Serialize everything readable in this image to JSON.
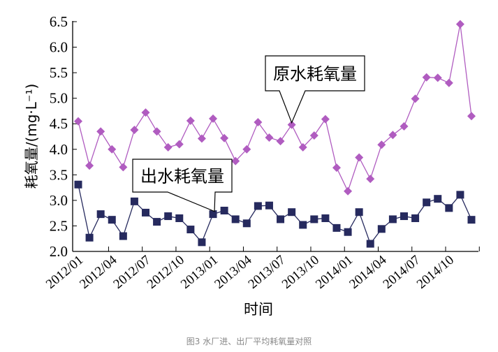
{
  "chart_data": {
    "type": "line",
    "xlabel": "时间",
    "ylabel": "耗氧量/(mg·L⁻¹)",
    "ylim": [
      2.0,
      6.5
    ],
    "yticks": [
      "2.0",
      "2.5",
      "3.0",
      "3.5",
      "4.0",
      "4.5",
      "5.0",
      "5.5",
      "6.0",
      "6.5"
    ],
    "xtick_labels": [
      "2012/01",
      "2012/04",
      "2012/07",
      "2012/10",
      "2013/01",
      "2013/04",
      "2013/07",
      "2013/10",
      "2014/01",
      "2014/04",
      "2014/07",
      "2014/10"
    ],
    "grid": false,
    "x": [
      "2012/01",
      "2012/02",
      "2012/03",
      "2012/04",
      "2012/05",
      "2012/06",
      "2012/07",
      "2012/08",
      "2012/09",
      "2012/10",
      "2012/11",
      "2012/12",
      "2013/01",
      "2013/02",
      "2013/03",
      "2013/04",
      "2013/05",
      "2013/06",
      "2013/07",
      "2013/08",
      "2013/09",
      "2013/10",
      "2013/11",
      "2013/12",
      "2014/01",
      "2014/02",
      "2014/03",
      "2014/04",
      "2014/05",
      "2014/06",
      "2014/07",
      "2014/08",
      "2014/09",
      "2014/10",
      "2014/11",
      "2014/12"
    ],
    "series": [
      {
        "name": "原水耗氧量",
        "color": "#b05cc0",
        "marker": "diamond",
        "values": [
          4.55,
          3.68,
          4.35,
          4.0,
          3.65,
          4.38,
          4.72,
          4.35,
          4.04,
          4.1,
          4.56,
          4.21,
          4.6,
          4.22,
          3.77,
          4.0,
          4.53,
          4.23,
          4.16,
          4.48,
          4.04,
          4.27,
          4.59,
          3.64,
          3.18,
          3.84,
          3.42,
          4.09,
          4.28,
          4.45,
          4.99,
          5.41,
          5.4,
          5.3,
          6.45,
          4.65
        ]
      },
      {
        "name": "出水耗氧量",
        "color": "#262a5e",
        "marker": "square",
        "values": [
          3.31,
          2.27,
          2.73,
          2.62,
          2.3,
          2.98,
          2.76,
          2.58,
          2.69,
          2.65,
          2.43,
          2.18,
          2.73,
          2.8,
          2.63,
          2.55,
          2.89,
          2.9,
          2.63,
          2.77,
          2.52,
          2.63,
          2.65,
          2.46,
          2.38,
          2.77,
          2.15,
          2.44,
          2.63,
          2.69,
          2.65,
          2.96,
          3.03,
          2.85,
          3.11,
          2.62
        ]
      }
    ]
  },
  "caption": "图3 水厂进、出厂平均耗氧量对照"
}
